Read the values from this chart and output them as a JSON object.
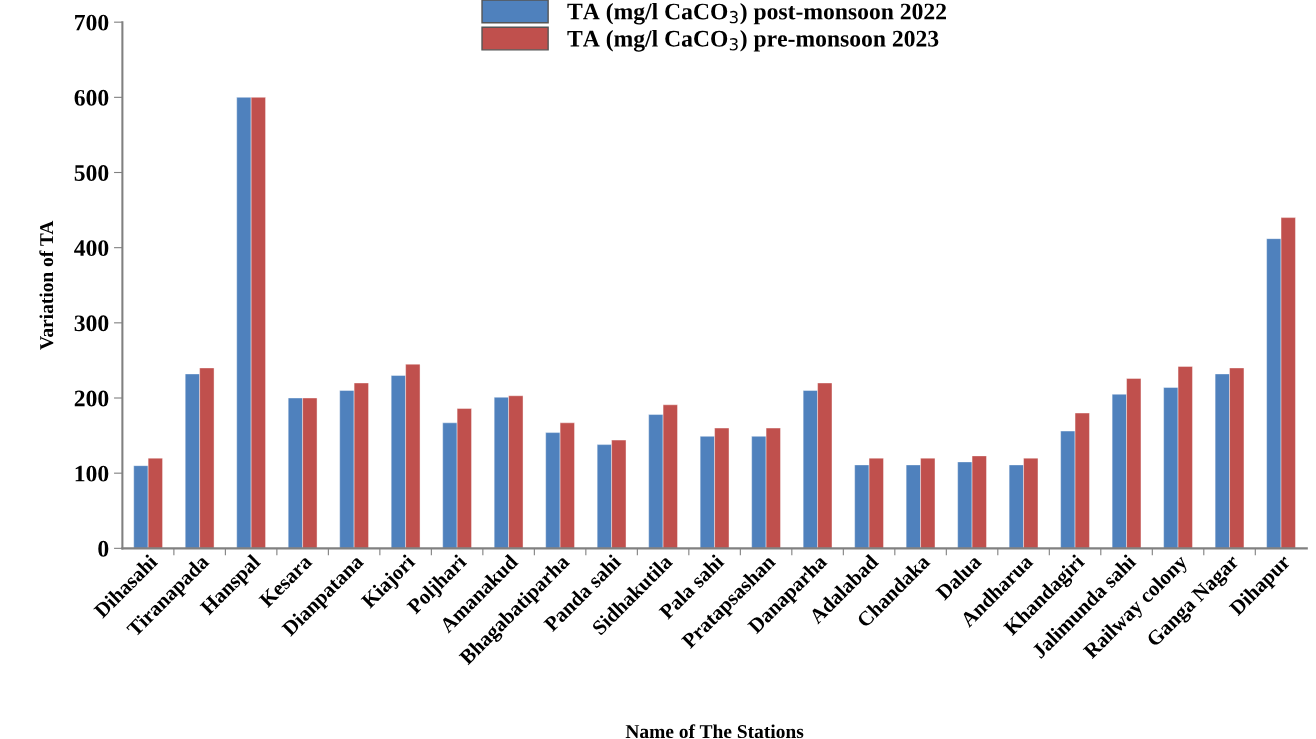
{
  "chart_data": {
    "type": "bar",
    "xlabel": "Name of The Stations",
    "ylabel": "Variation of TA",
    "categories": [
      "Dihasahi",
      "Tiranapada",
      "Hanspal",
      "Kesara",
      "Dianpatana",
      "Kiajori",
      "Poljhari",
      "Amanakud",
      "Bhagabatiparha",
      "Panda sahi",
      "Sidhakutila",
      "Pala sahi",
      "Pratapsashan",
      "Danaparha",
      "Adalabad",
      "Chandaka",
      "Dalua",
      "Andharua",
      "Khandagiri",
      "Jalimunda sahi",
      "Railway colony",
      "Ganga Nagar",
      "Dihapur"
    ],
    "series": [
      {
        "name": "TA (mg/l CaCO$_{3}$) post-monsoon 2022",
        "color": "#4f81bd",
        "values": [
          110,
          232,
          600,
          200,
          210,
          230,
          167,
          201,
          154,
          138,
          178,
          149,
          149,
          210,
          111,
          111,
          115,
          111,
          156,
          205,
          214,
          232,
          412
        ]
      },
      {
        "name": "TA (mg/l CaCO$_{3}$) pre-monsoon 2023",
        "color": "#c0504d",
        "values": [
          120,
          240,
          600,
          200,
          220,
          245,
          186,
          203,
          167,
          144,
          191,
          160,
          160,
          220,
          120,
          120,
          123,
          120,
          180,
          226,
          242,
          240,
          440
        ]
      }
    ],
    "ylim": [
      0,
      700
    ],
    "yticks": [
      0,
      100,
      200,
      300,
      400,
      500,
      600,
      700
    ],
    "grid": false,
    "legend": "top"
  }
}
